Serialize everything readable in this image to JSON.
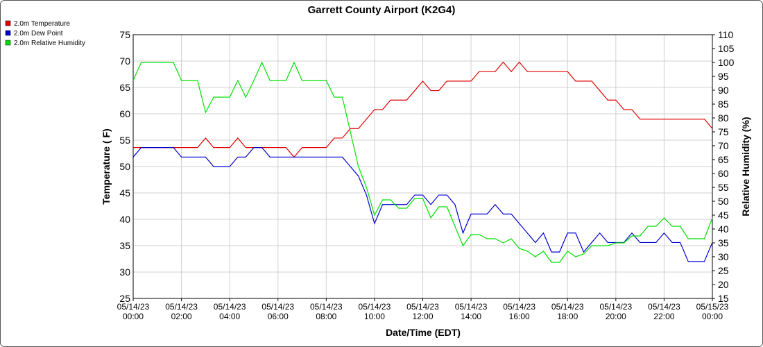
{
  "chart_data": {
    "type": "line",
    "title": "Garrett County Airport (K2G4)",
    "xlabel": "Date/Time (EDT)",
    "ylabel": "Temperature ( F)",
    "y2label": "Relative Humidity (%)",
    "x": [
      "05/14/23 00:00",
      "05/14/23 00:20",
      "05/14/23 00:40",
      "05/14/23 01:00",
      "05/14/23 01:20",
      "05/14/23 01:40",
      "05/14/23 02:00",
      "05/14/23 02:20",
      "05/14/23 02:40",
      "05/14/23 03:00",
      "05/14/23 03:20",
      "05/14/23 03:40",
      "05/14/23 04:00",
      "05/14/23 04:20",
      "05/14/23 04:40",
      "05/14/23 05:00",
      "05/14/23 05:20",
      "05/14/23 05:40",
      "05/14/23 06:00",
      "05/14/23 06:20",
      "05/14/23 06:40",
      "05/14/23 07:00",
      "05/14/23 07:20",
      "05/14/23 07:40",
      "05/14/23 08:00",
      "05/14/23 08:20",
      "05/14/23 08:40",
      "05/14/23 09:00",
      "05/14/23 09:20",
      "05/14/23 09:40",
      "05/14/23 10:00",
      "05/14/23 10:20",
      "05/14/23 10:40",
      "05/14/23 11:00",
      "05/14/23 11:20",
      "05/14/23 11:40",
      "05/14/23 12:00",
      "05/14/23 12:20",
      "05/14/23 12:40",
      "05/14/23 13:00",
      "05/14/23 13:20",
      "05/14/23 13:40",
      "05/14/23 14:00",
      "05/14/23 14:20",
      "05/14/23 14:40",
      "05/14/23 15:00",
      "05/14/23 15:20",
      "05/14/23 15:40",
      "05/14/23 16:00",
      "05/14/23 16:20",
      "05/14/23 16:40",
      "05/14/23 17:00",
      "05/14/23 17:20",
      "05/14/23 17:40",
      "05/14/23 18:00",
      "05/14/23 18:20",
      "05/14/23 18:40",
      "05/14/23 19:00",
      "05/14/23 19:20",
      "05/14/23 19:40",
      "05/14/23 20:00",
      "05/14/23 20:20",
      "05/14/23 20:40",
      "05/14/23 21:00",
      "05/14/23 21:20",
      "05/14/23 21:40",
      "05/14/23 22:00",
      "05/14/23 22:20",
      "05/14/23 22:40",
      "05/14/23 23:00",
      "05/14/23 23:20",
      "05/14/23 23:40",
      "05/15/23 00:00"
    ],
    "series": [
      {
        "name": "2.0m Temperature",
        "color": "#e00000",
        "values": [
          53.6,
          53.6,
          53.6,
          53.6,
          53.6,
          53.6,
          53.6,
          53.6,
          53.6,
          55.4,
          53.6,
          53.6,
          53.6,
          55.4,
          53.6,
          53.6,
          53.6,
          53.6,
          53.6,
          53.6,
          51.8,
          53.6,
          53.6,
          53.6,
          53.6,
          55.4,
          55.4,
          57.2,
          57.2,
          59,
          60.8,
          60.8,
          62.6,
          62.6,
          62.6,
          64.4,
          66.2,
          64.4,
          64.4,
          66.2,
          66.2,
          66.2,
          66.2,
          68,
          68,
          68,
          69.8,
          68,
          69.8,
          68,
          68,
          68,
          68,
          68,
          68,
          66.2,
          66.2,
          66.2,
          64.4,
          62.6,
          62.6,
          60.8,
          60.8,
          59,
          59,
          59,
          59,
          59,
          59,
          59,
          59,
          59,
          57.2
        ]
      },
      {
        "name": "2.0m Dew Point",
        "color": "#0000d0",
        "values": [
          51.8,
          53.6,
          53.6,
          53.6,
          53.6,
          53.6,
          51.8,
          51.8,
          51.8,
          51.8,
          50,
          50,
          50,
          51.8,
          51.8,
          53.6,
          53.6,
          51.8,
          51.8,
          51.8,
          51.8,
          51.8,
          51.8,
          51.8,
          51.8,
          51.8,
          51.8,
          50,
          48.2,
          44.6,
          39.2,
          42.8,
          42.8,
          42.8,
          42.8,
          44.6,
          44.6,
          42.8,
          44.6,
          44.6,
          42.8,
          37.4,
          41,
          41,
          41,
          42.8,
          41,
          41,
          39.2,
          37.4,
          35.6,
          37.4,
          33.8,
          33.8,
          37.4,
          37.4,
          33.8,
          35.6,
          37.4,
          35.6,
          35.6,
          35.6,
          37.4,
          35.6,
          35.6,
          35.6,
          37.4,
          35.6,
          35.6,
          32,
          32,
          32,
          35.6
        ]
      },
      {
        "name": "2.0m Relative Humidity",
        "color": "#00e000",
        "axis": "y2",
        "values": [
          93.5,
          100,
          100,
          100,
          100,
          100,
          93.5,
          93.5,
          93.5,
          82,
          87.5,
          87.5,
          87.5,
          93.5,
          87.5,
          93.5,
          100,
          93.5,
          93.5,
          93.5,
          100,
          93.5,
          93.5,
          93.5,
          93.5,
          87.5,
          87.5,
          75,
          62.5,
          55,
          45,
          50.5,
          50.5,
          47.5,
          47.5,
          51,
          51,
          44,
          48,
          48,
          41,
          34,
          38,
          38,
          36.5,
          36.5,
          35,
          36.5,
          33,
          32,
          30,
          32,
          28,
          28,
          32,
          30,
          31,
          34,
          34,
          34,
          35,
          35,
          37.5,
          37.5,
          41,
          41,
          44,
          41,
          41,
          36.5,
          36.5,
          36.5,
          44
        ]
      }
    ],
    "xlim": [
      "05/14/23 00:00",
      "05/15/23 00:00"
    ],
    "xticks": [
      {
        "value": "05/14/23 00:00",
        "label": [
          "05/14/23",
          "00:00"
        ]
      },
      {
        "value": "05/14/23 02:00",
        "label": [
          "05/14/23",
          "02:00"
        ]
      },
      {
        "value": "05/14/23 04:00",
        "label": [
          "05/14/23",
          "04:00"
        ]
      },
      {
        "value": "05/14/23 06:00",
        "label": [
          "05/14/23",
          "06:00"
        ]
      },
      {
        "value": "05/14/23 08:00",
        "label": [
          "05/14/23",
          "08:00"
        ]
      },
      {
        "value": "05/14/23 10:00",
        "label": [
          "05/14/23",
          "10:00"
        ]
      },
      {
        "value": "05/14/23 12:00",
        "label": [
          "05/14/23",
          "12:00"
        ]
      },
      {
        "value": "05/14/23 14:00",
        "label": [
          "05/14/23",
          "14:00"
        ]
      },
      {
        "value": "05/14/23 16:00",
        "label": [
          "05/14/23",
          "16:00"
        ]
      },
      {
        "value": "05/14/23 18:00",
        "label": [
          "05/14/23",
          "18:00"
        ]
      },
      {
        "value": "05/14/23 20:00",
        "label": [
          "05/14/23",
          "20:00"
        ]
      },
      {
        "value": "05/14/23 22:00",
        "label": [
          "05/14/23",
          "22:00"
        ]
      },
      {
        "value": "05/15/23 00:00",
        "label": [
          "05/15/23",
          "00:00"
        ]
      }
    ],
    "ylim": [
      25,
      75
    ],
    "yticks": [
      25,
      30,
      35,
      40,
      45,
      50,
      55,
      60,
      65,
      70,
      75
    ],
    "y2lim": [
      15,
      110
    ],
    "y2ticks": [
      15,
      20,
      25,
      30,
      35,
      40,
      45,
      50,
      55,
      60,
      65,
      70,
      75,
      80,
      85,
      90,
      95,
      100,
      105,
      110
    ],
    "grid": true,
    "legend": "top-left"
  }
}
